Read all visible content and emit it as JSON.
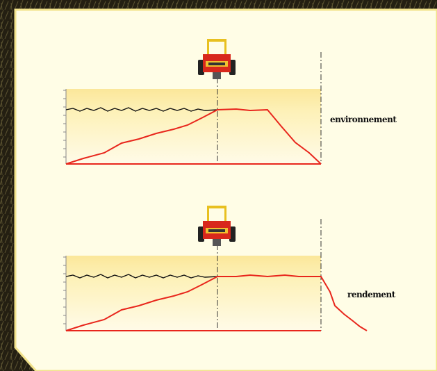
{
  "diagrams": [
    {
      "label": "environnement"
    },
    {
      "label": "rendement"
    }
  ]
}
